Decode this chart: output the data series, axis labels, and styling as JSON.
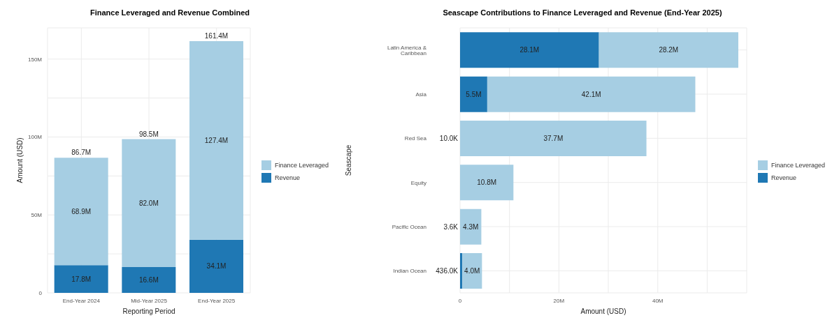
{
  "chart_data": [
    {
      "type": "bar",
      "title": "Finance Leveraged and Revenue Combined",
      "xlabel": "Reporting Period",
      "ylabel": "Amount (USD)",
      "categories": [
        "End-Year 2024",
        "Mid-Year 2025",
        "End-Year 2025"
      ],
      "stacked": true,
      "series": [
        {
          "name": "Revenue",
          "color": "#1f78b4",
          "values": [
            17800000,
            16600000,
            34100000
          ],
          "value_labels": [
            "17.8M",
            "16.6M",
            "34.1M"
          ]
        },
        {
          "name": "Finance Leveraged",
          "color": "#a6cee3",
          "values": [
            68900000,
            82000000,
            127400000
          ],
          "value_labels": [
            "68.9M",
            "82.0M",
            "127.4M"
          ]
        }
      ],
      "totals": [
        "86.7M",
        "98.5M",
        "161.4M"
      ],
      "ylim": [
        0,
        170000000
      ],
      "yticks": [
        0,
        {
          "value": 25000000,
          "label": null
        },
        {
          "value": 50000000,
          "label": "50M"
        },
        {
          "value": 75000000,
          "label": null
        },
        {
          "value": 100000000,
          "label": "100M"
        },
        {
          "value": 125000000,
          "label": null
        },
        {
          "value": 150000000,
          "label": "150M"
        }
      ],
      "grid": true,
      "legend": "right"
    },
    {
      "type": "bar",
      "orientation": "horizontal",
      "title": "Seascape Contributions to Finance Leveraged and Revenue (End-Year 2025)",
      "xlabel": "Amount (USD)",
      "ylabel": "Seascape",
      "categories": [
        "Latin America & Caribbean",
        "Asia",
        "Red Sea",
        "Equity",
        "Pacific Ocean",
        "Indian Ocean"
      ],
      "stacked": true,
      "series": [
        {
          "name": "Revenue",
          "color": "#1f78b4",
          "values": [
            28100000,
            5500000,
            10000,
            null,
            3600,
            436000
          ],
          "value_labels": [
            "28.1M",
            "5.5M",
            "10.0K",
            null,
            "3.6K",
            "436.0K"
          ]
        },
        {
          "name": "Finance Leveraged",
          "color": "#a6cee3",
          "values": [
            28200000,
            42100000,
            37700000,
            10800000,
            4300000,
            4000000
          ],
          "value_labels": [
            "28.2M",
            "42.1M",
            "37.7M",
            "10.8M",
            "4.3M",
            "4.0M"
          ]
        }
      ],
      "xlim": [
        0,
        58000000
      ],
      "xticks": [
        0,
        {
          "value": 10000000,
          "label": null
        },
        {
          "value": 20000000,
          "label": "20M"
        },
        {
          "value": 30000000,
          "label": null
        },
        {
          "value": 40000000,
          "label": "40M"
        },
        {
          "value": 50000000,
          "label": null
        }
      ],
      "grid": true,
      "legend": "right"
    }
  ]
}
